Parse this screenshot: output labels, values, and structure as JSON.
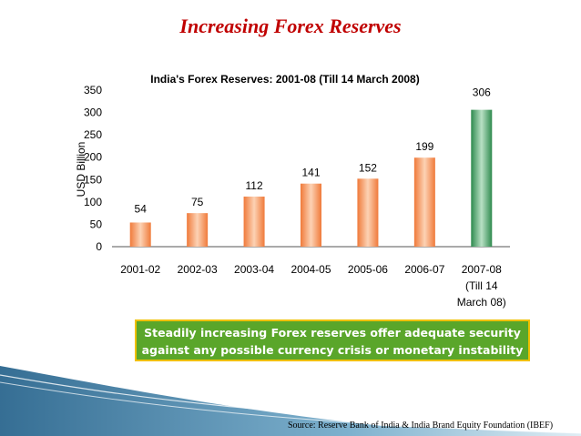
{
  "slide": {
    "title": "Increasing Forex Reserves",
    "caption_line1": "Steadily increasing Forex reserves offer adequate security",
    "caption_line2": "against any possible currency crisis or monetary instability",
    "source": "Source: Reserve Bank of India & India Brand Equity Foundation (IBEF)"
  },
  "chart_data": {
    "type": "bar",
    "title": "India's Forex Reserves: 2001-08 (Till 14 March 2008)",
    "ylabel": "USD Billion",
    "xlabel": "",
    "ylim": [
      0,
      350
    ],
    "yticks": [
      "0",
      "50",
      "100",
      "150",
      "200",
      "250",
      "300",
      "350"
    ],
    "categories": [
      [
        "2001-02"
      ],
      [
        "2002-03"
      ],
      [
        "2003-04"
      ],
      [
        "2004-05"
      ],
      [
        "2005-06"
      ],
      [
        "2006-07"
      ],
      [
        "2007-08",
        "(Till 14",
        "March 08)"
      ]
    ],
    "values": [
      54,
      75,
      112,
      141,
      152,
      199,
      306
    ],
    "value_labels": [
      "54",
      "75",
      "112",
      "141",
      "152",
      "199",
      "306"
    ],
    "colors": {
      "orange_bar": "#f08a4a",
      "green_bar": "#3f9a5e"
    },
    "highlight_index": 6
  }
}
